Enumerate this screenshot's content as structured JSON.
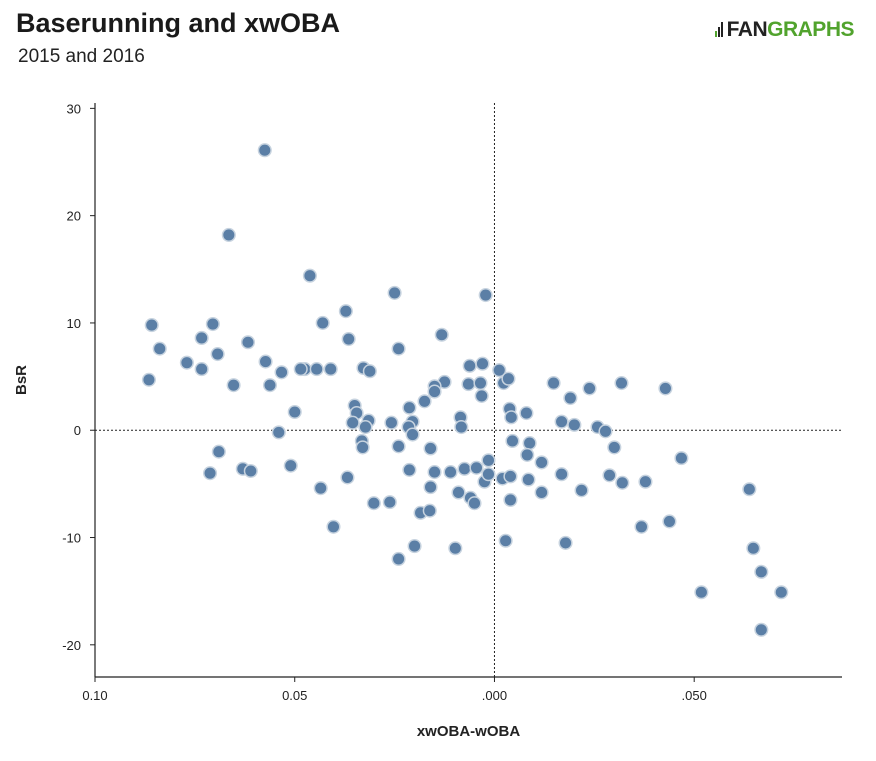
{
  "header": {
    "title": "Baserunning and xwOBA",
    "subtitle": "2015 and 2016",
    "logo_left": "FAN",
    "logo_right": "GRAPHS"
  },
  "colors": {
    "point_fill": "#5b7fa6",
    "point_stroke": "#c7d3df",
    "logo_green": "#51a32d"
  },
  "chart_data": {
    "type": "scatter",
    "title": "Baserunning and xwOBA",
    "subtitle": "2015 and 2016",
    "xlabel": "xwOBA-wOBA",
    "ylabel": "BsR",
    "xlim": [
      -0.1,
      0.087
    ],
    "ylim": [
      -23,
      30.5
    ],
    "x_reversed_tick_labels": true,
    "x_ticks": [
      {
        "value": -0.1,
        "label": "0.10"
      },
      {
        "value": -0.05,
        "label": "0.05"
      },
      {
        "value": 0.0,
        "label": ".000"
      },
      {
        "value": 0.05,
        "label": ".050"
      }
    ],
    "y_ticks": [
      {
        "value": 30,
        "label": "30"
      },
      {
        "value": 20,
        "label": "20"
      },
      {
        "value": 10,
        "label": "10"
      },
      {
        "value": 0,
        "label": "0"
      },
      {
        "value": -10,
        "label": "-10"
      },
      {
        "value": -20,
        "label": "-20"
      }
    ],
    "reference_lines": {
      "x": 0,
      "y": 0
    },
    "points": [
      [
        -0.0575,
        26.1
      ],
      [
        -0.0665,
        18.2
      ],
      [
        -0.0462,
        14.4
      ],
      [
        -0.025,
        12.8
      ],
      [
        -0.0022,
        12.6
      ],
      [
        -0.0858,
        9.8
      ],
      [
        -0.0705,
        9.9
      ],
      [
        -0.043,
        10.0
      ],
      [
        -0.0372,
        11.1
      ],
      [
        -0.0132,
        8.9
      ],
      [
        -0.0733,
        8.6
      ],
      [
        -0.0617,
        8.2
      ],
      [
        -0.0365,
        8.5
      ],
      [
        -0.0838,
        7.6
      ],
      [
        -0.0693,
        7.1
      ],
      [
        -0.024,
        7.6
      ],
      [
        -0.077,
        6.3
      ],
      [
        -0.0573,
        6.4
      ],
      [
        -0.0475,
        5.7
      ],
      [
        -0.0445,
        5.7
      ],
      [
        -0.041,
        5.7
      ],
      [
        -0.0733,
        5.7
      ],
      [
        -0.0533,
        5.4
      ],
      [
        -0.0485,
        5.7
      ],
      [
        -0.0328,
        5.8
      ],
      [
        -0.0312,
        5.5
      ],
      [
        -0.0062,
        6.0
      ],
      [
        -0.003,
        6.2
      ],
      [
        0.0012,
        5.6
      ],
      [
        -0.0865,
        4.7
      ],
      [
        -0.0653,
        4.2
      ],
      [
        -0.0562,
        4.2
      ],
      [
        -0.0125,
        4.5
      ],
      [
        -0.015,
        4.1
      ],
      [
        -0.0065,
        4.3
      ],
      [
        -0.0035,
        4.4
      ],
      [
        0.0023,
        4.4
      ],
      [
        0.0035,
        4.8
      ],
      [
        0.0148,
        4.4
      ],
      [
        0.0238,
        3.9
      ],
      [
        0.0318,
        4.4
      ],
      [
        0.0428,
        3.9
      ],
      [
        -0.015,
        3.6
      ],
      [
        -0.0032,
        3.2
      ],
      [
        0.019,
        3.0
      ],
      [
        -0.0175,
        2.7
      ],
      [
        -0.035,
        2.3
      ],
      [
        -0.0345,
        1.6
      ],
      [
        -0.05,
        1.7
      ],
      [
        -0.0213,
        2.1
      ],
      [
        0.0038,
        2.0
      ],
      [
        0.0042,
        1.2
      ],
      [
        0.008,
        1.6
      ],
      [
        -0.0085,
        1.2
      ],
      [
        0.0168,
        0.8
      ],
      [
        0.02,
        0.5
      ],
      [
        -0.0355,
        0.7
      ],
      [
        -0.0315,
        0.9
      ],
      [
        -0.0323,
        0.3
      ],
      [
        -0.0258,
        0.7
      ],
      [
        -0.0205,
        0.8
      ],
      [
        -0.0215,
        0.3
      ],
      [
        -0.0083,
        0.3
      ],
      [
        0.0258,
        0.3
      ],
      [
        0.0278,
        -0.1
      ],
      [
        -0.054,
        -0.2
      ],
      [
        -0.0205,
        -0.4
      ],
      [
        -0.069,
        -2.0
      ],
      [
        -0.0332,
        -1.0
      ],
      [
        -0.033,
        -1.6
      ],
      [
        -0.024,
        -1.5
      ],
      [
        -0.016,
        -1.7
      ],
      [
        -0.0025,
        -4.8
      ],
      [
        0.0045,
        -1.0
      ],
      [
        0.0088,
        -1.2
      ],
      [
        0.03,
        -1.6
      ],
      [
        0.0468,
        -2.6
      ],
      [
        -0.0015,
        -2.8
      ],
      [
        0.0082,
        -2.3
      ],
      [
        0.0118,
        -3.0
      ],
      [
        -0.0712,
        -4.0
      ],
      [
        -0.063,
        -3.6
      ],
      [
        -0.061,
        -3.8
      ],
      [
        -0.051,
        -3.3
      ],
      [
        -0.0368,
        -4.4
      ],
      [
        -0.0213,
        -3.7
      ],
      [
        -0.015,
        -3.9
      ],
      [
        -0.011,
        -3.9
      ],
      [
        -0.0075,
        -3.6
      ],
      [
        -0.0045,
        -3.5
      ],
      [
        -0.0015,
        -4.1
      ],
      [
        0.002,
        -4.5
      ],
      [
        0.004,
        -4.3
      ],
      [
        0.0085,
        -4.6
      ],
      [
        0.0168,
        -4.1
      ],
      [
        0.0288,
        -4.2
      ],
      [
        0.032,
        -4.9
      ],
      [
        0.0378,
        -4.8
      ],
      [
        0.0218,
        -5.6
      ],
      [
        0.0118,
        -5.8
      ],
      [
        -0.0435,
        -5.4
      ],
      [
        -0.016,
        -5.3
      ],
      [
        -0.009,
        -5.8
      ],
      [
        -0.006,
        -6.3
      ],
      [
        -0.005,
        -6.8
      ],
      [
        0.004,
        -6.5
      ],
      [
        -0.0302,
        -6.8
      ],
      [
        -0.0262,
        -6.7
      ],
      [
        -0.0185,
        -7.7
      ],
      [
        -0.0162,
        -7.5
      ],
      [
        0.0368,
        -9.0
      ],
      [
        0.0438,
        -8.5
      ],
      [
        -0.0403,
        -9.0
      ],
      [
        0.0028,
        -10.3
      ],
      [
        0.0178,
        -10.5
      ],
      [
        -0.02,
        -10.8
      ],
      [
        -0.0098,
        -11.0
      ],
      [
        -0.024,
        -12.0
      ],
      [
        0.0518,
        -15.1
      ],
      [
        0.0638,
        -5.5
      ],
      [
        0.0648,
        -11.0
      ],
      [
        0.0668,
        -13.2
      ],
      [
        0.0668,
        -18.6
      ],
      [
        0.0718,
        -15.1
      ]
    ]
  }
}
